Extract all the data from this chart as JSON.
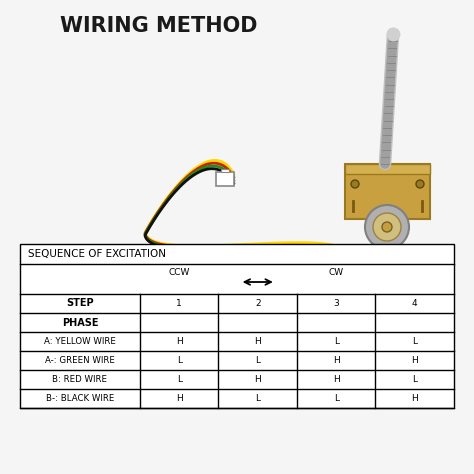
{
  "title": "WIRING METHOD",
  "bg_color": "#f5f5f5",
  "table_header": "SEQUENCE OF EXCITATION",
  "ccw_label": "CCW",
  "cw_label": "CW",
  "step_label": "STEP",
  "phase_label": "PHASE",
  "rows": [
    {
      "label": "A: YELLOW WIRE",
      "values": [
        "H",
        "H",
        "L",
        "L"
      ]
    },
    {
      "label": "A-: GREEN WIRE",
      "values": [
        "L",
        "L",
        "H",
        "H"
      ]
    },
    {
      "label": "B: RED WIRE",
      "values": [
        "L",
        "H",
        "H",
        "L"
      ]
    },
    {
      "label": "B-: BLACK WIRE",
      "values": [
        "H",
        "L",
        "L",
        "H"
      ]
    }
  ],
  "step_values": [
    "1",
    "2",
    "3",
    "4"
  ],
  "wire_colors": [
    "#111111",
    "#228B22",
    "#CC2200",
    "#FFD700"
  ],
  "title_fontsize": 15,
  "table_fontsize": 6.5,
  "header_fontsize": 7.5
}
